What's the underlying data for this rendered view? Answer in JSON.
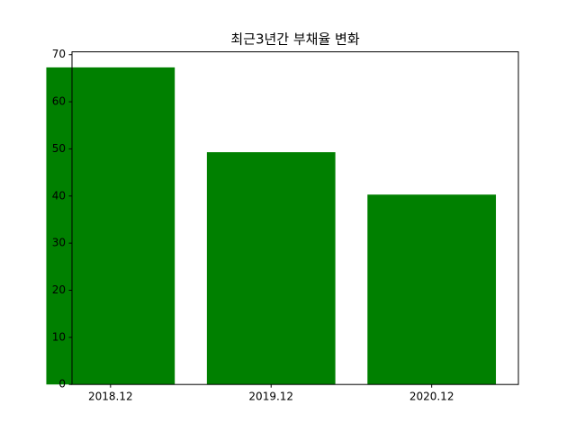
{
  "chart_data": {
    "type": "bar",
    "title": "최근3년간 부채율 변화",
    "categories": [
      "2018.12",
      "2019.12",
      "2020.12"
    ],
    "values": [
      67.3,
      49.3,
      40.3
    ],
    "color": "#008000",
    "ylim": [
      0,
      70.6
    ],
    "yticks": [
      0,
      10,
      20,
      30,
      40,
      50,
      60,
      70
    ],
    "grid": false
  }
}
